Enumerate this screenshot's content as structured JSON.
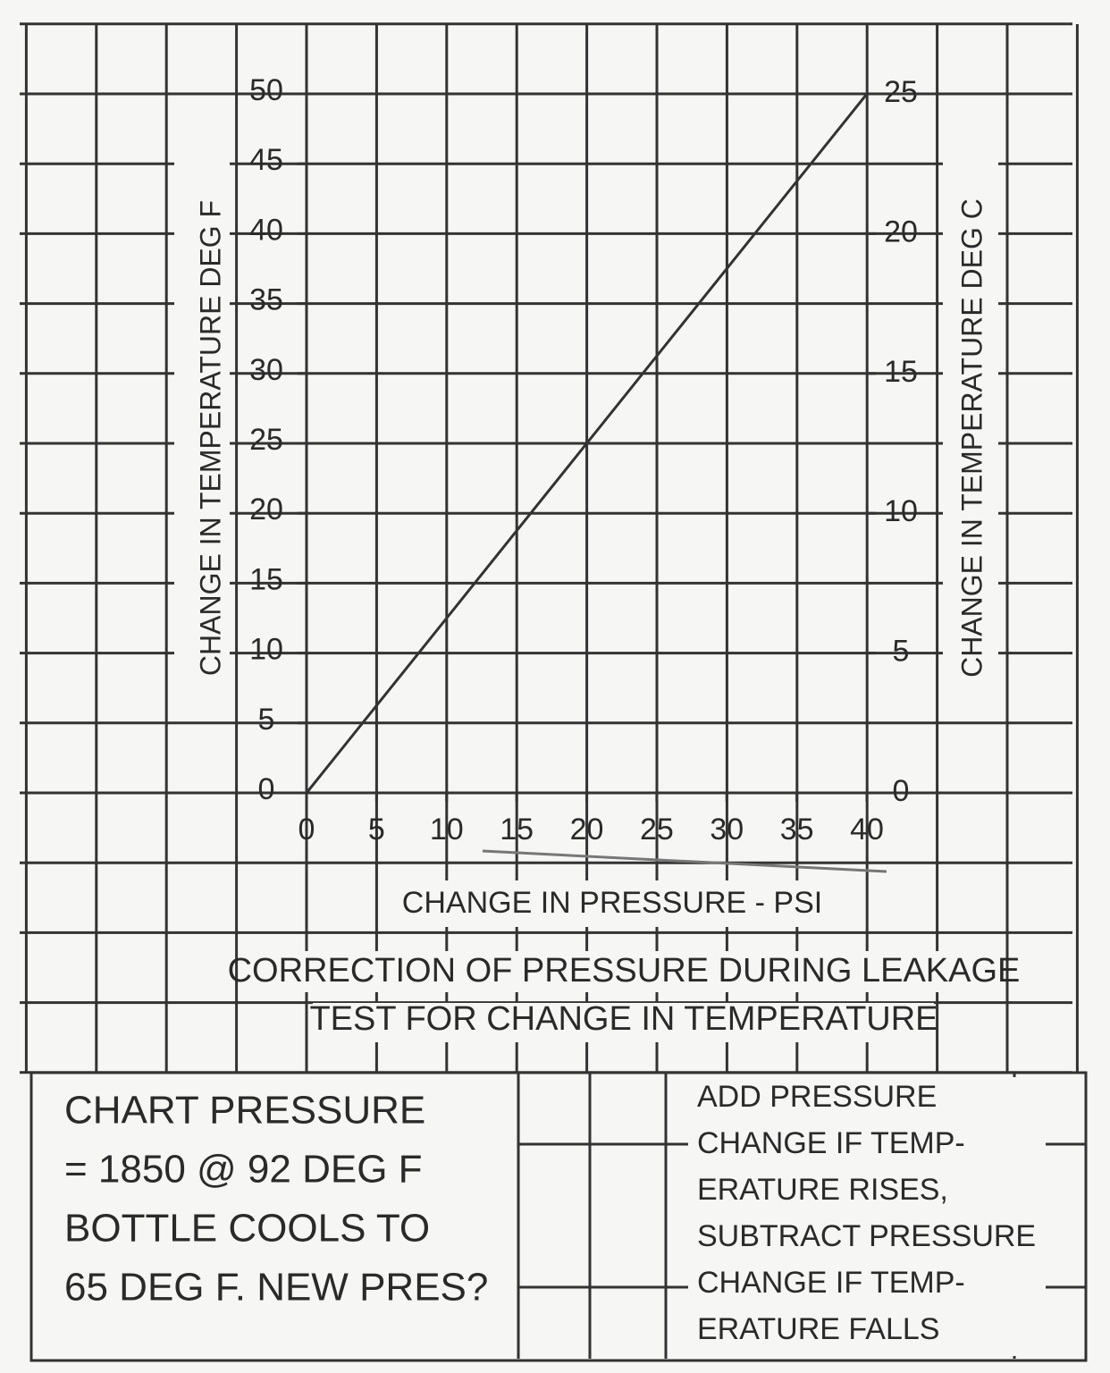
{
  "chart_data": {
    "type": "line",
    "x": [
      0,
      40
    ],
    "series": [
      {
        "color": "#333333",
        "values": [
          0,
          50
        ]
      }
    ],
    "xlim": [
      0,
      40
    ],
    "xticks": [
      0,
      5,
      10,
      15,
      20,
      25,
      30,
      35,
      40
    ],
    "ylim": [
      0,
      50
    ],
    "yticks": [
      0,
      5,
      10,
      15,
      20,
      25,
      30,
      35,
      40,
      45,
      50
    ],
    "y2lim": [
      0,
      25
    ],
    "y2ticks": [
      0,
      5,
      10,
      15,
      20,
      25
    ],
    "xlabel": "CHANGE IN PRESSURE - PSI",
    "ylabel": "CHANGE IN TEMPERATURE DEG F",
    "y2label": "CHANGE IN TEMPERATURE DEG C",
    "title": [
      "CORRECTION OF PRESSURE DURING LEAKAGE",
      "TEST FOR CHANGE IN TEMPERATURE"
    ],
    "annotations": {
      "problem": [
        "CHART PRESSURE",
        "= 1850 @ 92 DEG F",
        "BOTTLE COOLS TO",
        "65 DEG F.  NEW PRES?"
      ],
      "note": [
        "ADD PRESSURE",
        "CHANGE IF TEMP-",
        "ERATURE RISES,",
        "SUBTRACT PRESSURE",
        "CHANGE IF TEMP-",
        "ERATURE FALLS"
      ]
    }
  }
}
